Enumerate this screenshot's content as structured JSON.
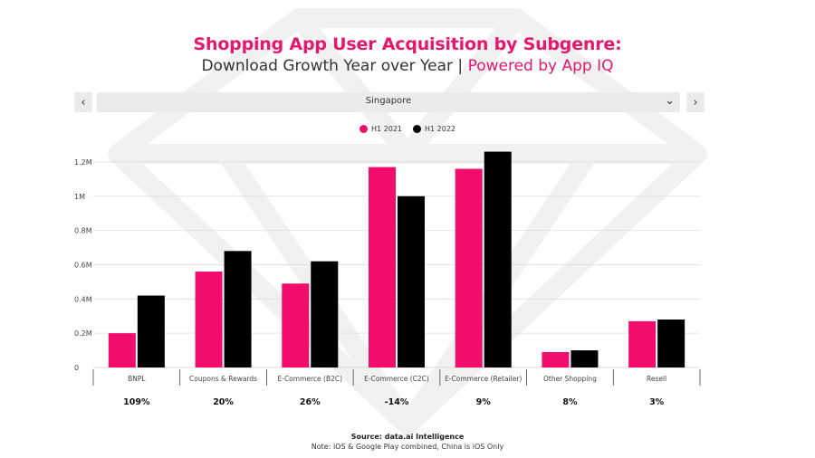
{
  "header": {
    "title": "Shopping App User Acquisition by Subgenre:",
    "subtitle_main": "Download Growth Year over Year | ",
    "subtitle_accent": "Powered by App IQ"
  },
  "filter": {
    "prev_icon": "chevron-left-icon",
    "prev_label": "‹",
    "next_icon": "chevron-right-icon",
    "next_label": "›",
    "chevron_label": "⌄",
    "selected": "Singapore"
  },
  "colors": {
    "accent": "#e6176e",
    "h1_2021": "#f20d6c",
    "h1_2022": "#000000"
  },
  "chart_data": {
    "type": "bar",
    "title": "Shopping App User Acquisition by Subgenre:",
    "subtitle": "Download Growth Year over Year | Powered by App IQ",
    "categories": [
      "BNPL",
      "Coupons & Rewards",
      "E-Commerce (B2C)",
      "E-Commerce (C2C)",
      "E-Commerce (Retailer)",
      "Other Shopping",
      "Resell"
    ],
    "series": [
      {
        "name": "H1 2021",
        "values": [
          0.2,
          0.56,
          0.49,
          1.17,
          1.16,
          0.09,
          0.27
        ]
      },
      {
        "name": "H1 2022",
        "values": [
          0.42,
          0.68,
          0.62,
          1.0,
          1.26,
          0.1,
          0.28
        ]
      }
    ],
    "growth": [
      "109%",
      "20%",
      "26%",
      "-14%",
      "9%",
      "8%",
      "3%"
    ],
    "ylim": [
      0,
      1.3
    ],
    "yticks": [
      0,
      0.2,
      0.4,
      0.6,
      0.8,
      1.0,
      1.2
    ],
    "ytick_labels": [
      "0",
      "0.2M",
      "0.4M",
      "0.6M",
      "0.8M",
      "1M",
      "1.2M"
    ],
    "grid": true,
    "legend_position": "top-center",
    "xlabel": "",
    "ylabel": ""
  },
  "footer": {
    "source": "Source: data.ai Intelligence",
    "note": "Note: iOS & Google Play combined, China is iOS Only"
  }
}
